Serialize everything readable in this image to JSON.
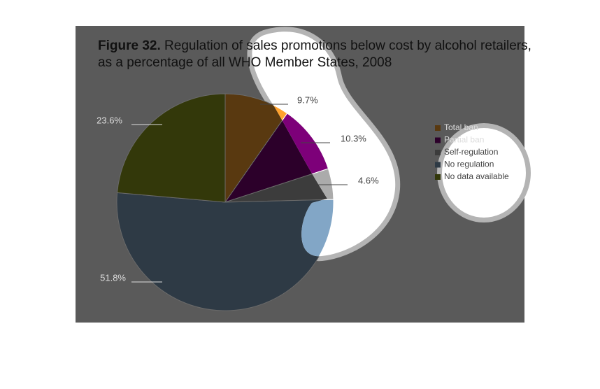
{
  "chart_data": {
    "type": "pie",
    "title_label": "Figure 32.",
    "title": [
      "Regulation of sales promotions below cost by alcohol retailers,",
      "as a percentage of all WHO Member States, 2008"
    ],
    "categories": [
      "Total ban",
      "Partial ban",
      "Self-regulation",
      "No regulation",
      "No data available"
    ],
    "values": [
      9.7,
      10.3,
      4.6,
      51.8,
      23.6
    ],
    "value_labels": [
      "9.7%",
      "10.3%",
      "4.6%",
      "51.8%",
      "23.6%"
    ],
    "colors": [
      "#ffa22e",
      "#7d0079",
      "#ababab",
      "#82a6c6",
      "#939f1d"
    ],
    "legend": "right"
  }
}
